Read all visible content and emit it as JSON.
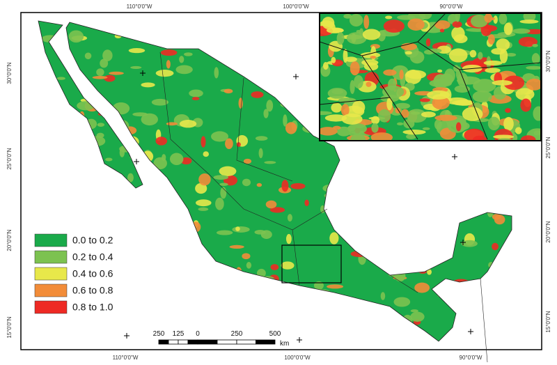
{
  "map": {
    "top_labels": [
      "110°0'0\"W",
      "100°0'0\"W",
      "90°0'0\"W"
    ],
    "bottom_labels": [
      "110°0'0\"W",
      "100°0'0\"W",
      "90°0'0\"W"
    ],
    "left_labels": [
      "30°0'0\"N",
      "25°0'0\"N",
      "20°0'0\"N",
      "15°0'0\"N"
    ],
    "right_labels": [
      "30°0'0\"N",
      "25°0'0\"N",
      "20°0'0\"N",
      "15°0'0\"N"
    ],
    "legend": [
      {
        "label": "0.0 to 0.2",
        "color": "#1aaa4a"
      },
      {
        "label": "0.2 to 0.4",
        "color": "#7cc250"
      },
      {
        "label": "0.4 to 0.6",
        "color": "#e8e84a"
      },
      {
        "label": "0.6 to 0.8",
        "color": "#f28c38"
      },
      {
        "label": "0.8 to 1.0",
        "color": "#ee2a24"
      }
    ],
    "scale_bar": {
      "labels": [
        "250",
        "125",
        "0",
        "250",
        "500"
      ],
      "unit": "km"
    }
  }
}
